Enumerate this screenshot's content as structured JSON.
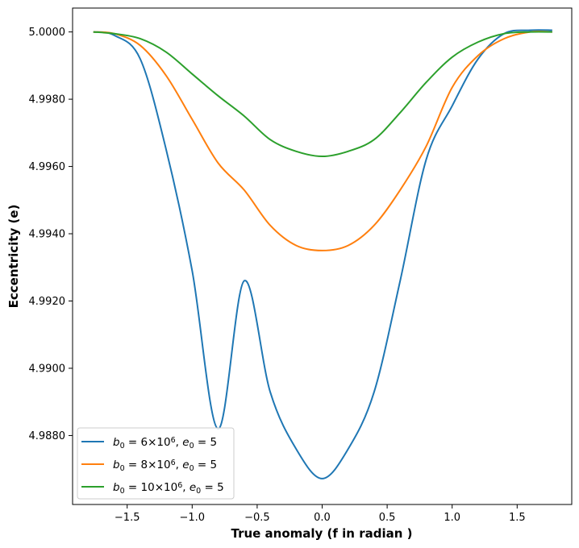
{
  "chart_data": {
    "type": "line",
    "xlabel": "True anomaly (f in radian )",
    "ylabel": "Eccentricity (e)",
    "xlim": [
      -1.92,
      1.92
    ],
    "ylim": [
      4.98595,
      5.00071
    ],
    "x_ticks": [
      -1.5,
      -1.0,
      -0.5,
      0.0,
      0.5,
      1.0,
      1.5
    ],
    "x_tick_labels": [
      "−1.5",
      "−1.0",
      "−0.5",
      "0.0",
      "0.5",
      "1.0",
      "1.5"
    ],
    "y_ticks": [
      4.988,
      4.99,
      4.992,
      4.994,
      4.996,
      4.998,
      5.0
    ],
    "y_tick_labels": [
      "4.9880",
      "4.9900",
      "4.9920",
      "4.9940",
      "4.9960",
      "4.9980",
      "5.0000"
    ],
    "grid": false,
    "legend_position": "lower-left",
    "x": [
      -1.76,
      -1.6,
      -1.4,
      -1.2,
      -1.0,
      -0.8,
      -0.6,
      -0.4,
      -0.2,
      0.0,
      0.2,
      0.4,
      0.6,
      0.8,
      1.0,
      1.2,
      1.4,
      1.6,
      1.77
    ],
    "series": [
      {
        "legend_base": "b",
        "legend_sub": "0",
        "legend_eq_1": " = 6×10",
        "legend_sup": "6",
        "legend_comma": ", ",
        "legend_e": "e",
        "legend_e_sub": "0",
        "legend_eq_2": " = 5",
        "color": "#1f77b4",
        "values": [
          5.0,
          4.9999,
          4.9992,
          4.9965,
          4.9929,
          4.9882,
          4.9926,
          4.9893,
          4.9876,
          4.98672,
          4.9876,
          4.9893,
          4.9926,
          4.9962,
          4.9978,
          4.9992,
          4.99995,
          5.00005,
          5.00005
        ]
      },
      {
        "legend_base": "b",
        "legend_sub": "0",
        "legend_eq_1": " = 8×10",
        "legend_sup": "6",
        "legend_comma": ", ",
        "legend_e": "e",
        "legend_e_sub": "0",
        "legend_eq_2": " = 5",
        "color": "#ff7f0e",
        "values": [
          5.0,
          4.99995,
          4.9996,
          4.9987,
          4.9974,
          4.9961,
          4.9953,
          4.99425,
          4.99365,
          4.9935,
          4.99365,
          4.99425,
          4.9953,
          4.9966,
          4.99835,
          4.9993,
          4.9998,
          5.0,
          5.0
        ]
      },
      {
        "legend_base": "b",
        "legend_sub": "0",
        "legend_eq_1": " = 10×10",
        "legend_sup": "6",
        "legend_comma": ", ",
        "legend_e": "e",
        "legend_e_sub": "0",
        "legend_eq_2": " = 5",
        "color": "#2ca02c",
        "values": [
          5.0,
          4.99995,
          4.9998,
          4.9994,
          4.99875,
          4.9981,
          4.9975,
          4.9968,
          4.99645,
          4.9963,
          4.99645,
          4.9968,
          4.9976,
          4.9985,
          4.99925,
          4.9997,
          4.99995,
          5.0,
          5.0
        ]
      }
    ]
  }
}
